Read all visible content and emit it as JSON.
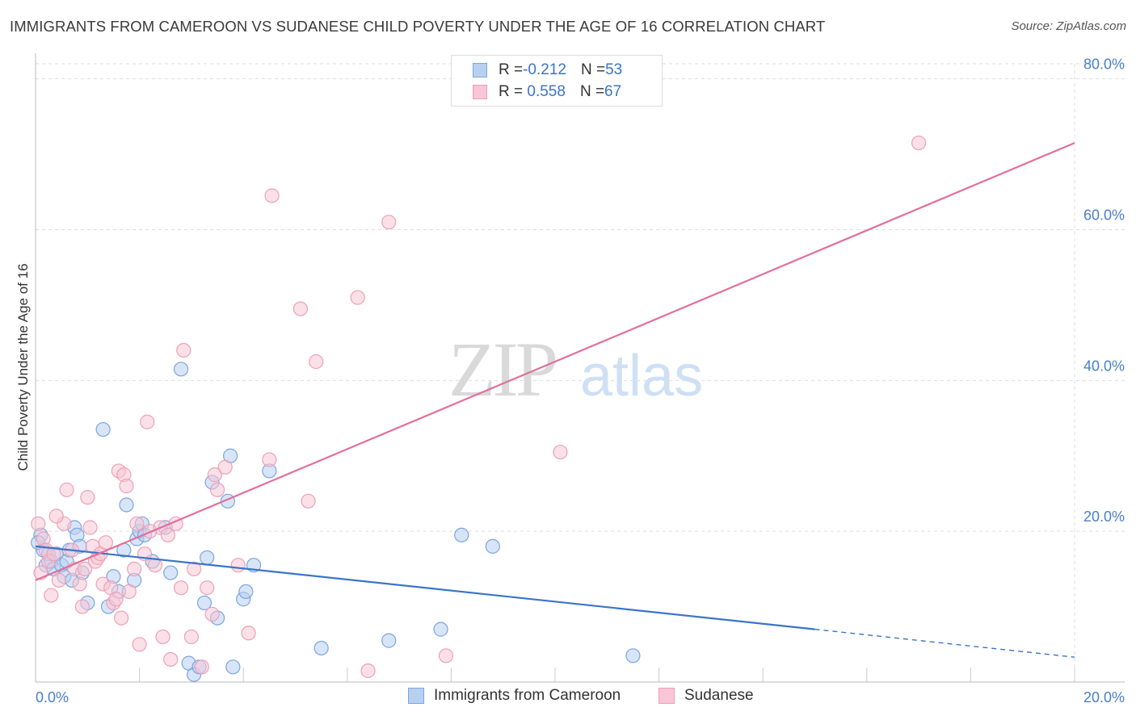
{
  "title": "IMMIGRANTS FROM CAMEROON VS SUDANESE CHILD POVERTY UNDER THE AGE OF 16 CORRELATION CHART",
  "source": "Source: ZipAtlas.com",
  "watermark": {
    "zip": "ZIP",
    "atlas": "atlas"
  },
  "colors": {
    "cameroon_fill": "#b8d0f0",
    "cameroon_stroke": "#7aa6e0",
    "cameroon_line": "#3a74c9",
    "sudanese_fill": "#f8c6d6",
    "sudanese_stroke": "#eea0b8",
    "sudanese_line": "#e0709a",
    "tick": "#4a7fc9",
    "grid": "#dddddd"
  },
  "legend": {
    "rows": [
      {
        "r_label": "R = ",
        "r_value": "-0.212",
        "n_label": "N = ",
        "n_value": "53"
      },
      {
        "r_label": "R = ",
        "r_value": " 0.558",
        "n_label": "N = ",
        "n_value": "67"
      }
    ]
  },
  "bottom_legend": [
    {
      "label": "Immigrants from Cameroon"
    },
    {
      "label": "Sudanese"
    }
  ],
  "chart_data": {
    "type": "scatter",
    "title": "IMMIGRANTS FROM CAMEROON VS SUDANESE CHILD POVERTY UNDER THE AGE OF 16 CORRELATION CHART",
    "xlabel": "",
    "ylabel": "Child Poverty Under the Age of 16",
    "xlim": [
      0,
      20
    ],
    "ylim": [
      0,
      82
    ],
    "x_ticks": [
      {
        "value": 0,
        "label": "0.0%"
      },
      {
        "value": 20,
        "label": "20.0%"
      }
    ],
    "y_ticks": [
      {
        "value": 20,
        "label": "20.0%"
      },
      {
        "value": 40,
        "label": "40.0%"
      },
      {
        "value": 60,
        "label": "60.0%"
      },
      {
        "value": 80,
        "label": "80.0%"
      }
    ],
    "grid": true,
    "legend_position": "top-center",
    "series": [
      {
        "name": "Immigrants from Cameroon",
        "r": -0.212,
        "n": 53,
        "trend": {
          "x0": 0,
          "y0": 18.0,
          "x1": 15.0,
          "y1": 7.0,
          "dashed_to_x": 20,
          "dashed_to_y": 3.3
        },
        "points": [
          [
            0.1,
            19.5
          ],
          [
            0.15,
            17.5
          ],
          [
            0.2,
            15.5
          ],
          [
            0.25,
            17
          ],
          [
            0.3,
            16
          ],
          [
            0.35,
            15
          ],
          [
            0.4,
            17
          ],
          [
            0.5,
            15.5
          ],
          [
            0.55,
            14
          ],
          [
            0.6,
            16
          ],
          [
            0.65,
            17.5
          ],
          [
            0.7,
            13.5
          ],
          [
            0.75,
            20.5
          ],
          [
            0.8,
            19.5
          ],
          [
            0.85,
            18
          ],
          [
            0.9,
            14.5
          ],
          [
            1.3,
            33.5
          ],
          [
            1.0,
            10.5
          ],
          [
            1.4,
            10
          ],
          [
            1.5,
            14
          ],
          [
            1.6,
            12
          ],
          [
            1.7,
            17.5
          ],
          [
            1.75,
            23.5
          ],
          [
            1.9,
            13.5
          ],
          [
            1.95,
            19
          ],
          [
            2.0,
            20
          ],
          [
            2.05,
            21
          ],
          [
            2.1,
            19.5
          ],
          [
            2.25,
            16
          ],
          [
            2.5,
            20.5
          ],
          [
            2.6,
            14.5
          ],
          [
            2.8,
            41.5
          ],
          [
            2.95,
            2.5
          ],
          [
            3.05,
            1
          ],
          [
            3.15,
            2
          ],
          [
            3.25,
            10.5
          ],
          [
            3.3,
            16.5
          ],
          [
            3.4,
            26.5
          ],
          [
            3.5,
            8.5
          ],
          [
            3.7,
            24
          ],
          [
            3.75,
            30
          ],
          [
            3.8,
            2
          ],
          [
            4.0,
            11
          ],
          [
            4.05,
            12
          ],
          [
            4.2,
            15.5
          ],
          [
            4.5,
            28
          ],
          [
            5.5,
            4.5
          ],
          [
            6.8,
            5.5
          ],
          [
            7.8,
            7
          ],
          [
            8.2,
            19.5
          ],
          [
            8.8,
            18
          ],
          [
            11.5,
            3.5
          ],
          [
            0.05,
            18.5
          ]
        ]
      },
      {
        "name": "Sudanese",
        "r": 0.558,
        "n": 67,
        "trend": {
          "x0": 0,
          "y0": 13.5,
          "x1": 20,
          "y1": 71.5
        },
        "points": [
          [
            0.05,
            21
          ],
          [
            0.15,
            19
          ],
          [
            0.2,
            17.5
          ],
          [
            0.25,
            16
          ],
          [
            0.35,
            17
          ],
          [
            0.45,
            13.5
          ],
          [
            0.55,
            21
          ],
          [
            0.6,
            25.5
          ],
          [
            0.7,
            17.5
          ],
          [
            0.75,
            15
          ],
          [
            0.85,
            13
          ],
          [
            0.9,
            10
          ],
          [
            0.95,
            15
          ],
          [
            1.0,
            24.5
          ],
          [
            1.05,
            20.5
          ],
          [
            1.1,
            18
          ],
          [
            1.15,
            16
          ],
          [
            1.2,
            16.5
          ],
          [
            1.25,
            17
          ],
          [
            1.3,
            13
          ],
          [
            1.35,
            18.5
          ],
          [
            1.45,
            12.5
          ],
          [
            1.5,
            10.5
          ],
          [
            1.55,
            11
          ],
          [
            1.6,
            28
          ],
          [
            1.65,
            8.5
          ],
          [
            1.7,
            27.5
          ],
          [
            1.8,
            12
          ],
          [
            1.9,
            15
          ],
          [
            1.95,
            21
          ],
          [
            2.0,
            5
          ],
          [
            2.1,
            17
          ],
          [
            2.15,
            34.5
          ],
          [
            2.3,
            15.5
          ],
          [
            2.4,
            20.5
          ],
          [
            2.45,
            6
          ],
          [
            2.55,
            19.5
          ],
          [
            2.7,
            21
          ],
          [
            2.8,
            12.5
          ],
          [
            2.85,
            44
          ],
          [
            3.0,
            6
          ],
          [
            3.05,
            15
          ],
          [
            3.2,
            2
          ],
          [
            3.3,
            12.5
          ],
          [
            3.45,
            27.5
          ],
          [
            3.5,
            25.5
          ],
          [
            3.65,
            28.5
          ],
          [
            3.9,
            15.5
          ],
          [
            4.5,
            29.5
          ],
          [
            4.55,
            64.5
          ],
          [
            5.1,
            49.5
          ],
          [
            5.25,
            24
          ],
          [
            5.4,
            42.5
          ],
          [
            6.2,
            51
          ],
          [
            6.4,
            1.5
          ],
          [
            6.8,
            61
          ],
          [
            7.9,
            3.5
          ],
          [
            10.1,
            30.5
          ],
          [
            17.0,
            71.5
          ],
          [
            0.3,
            11.5
          ],
          [
            0.4,
            22
          ],
          [
            2.6,
            3
          ],
          [
            1.75,
            26
          ],
          [
            0.1,
            14.5
          ],
          [
            2.2,
            20
          ],
          [
            3.4,
            9
          ],
          [
            4.1,
            6.5
          ]
        ]
      }
    ]
  }
}
